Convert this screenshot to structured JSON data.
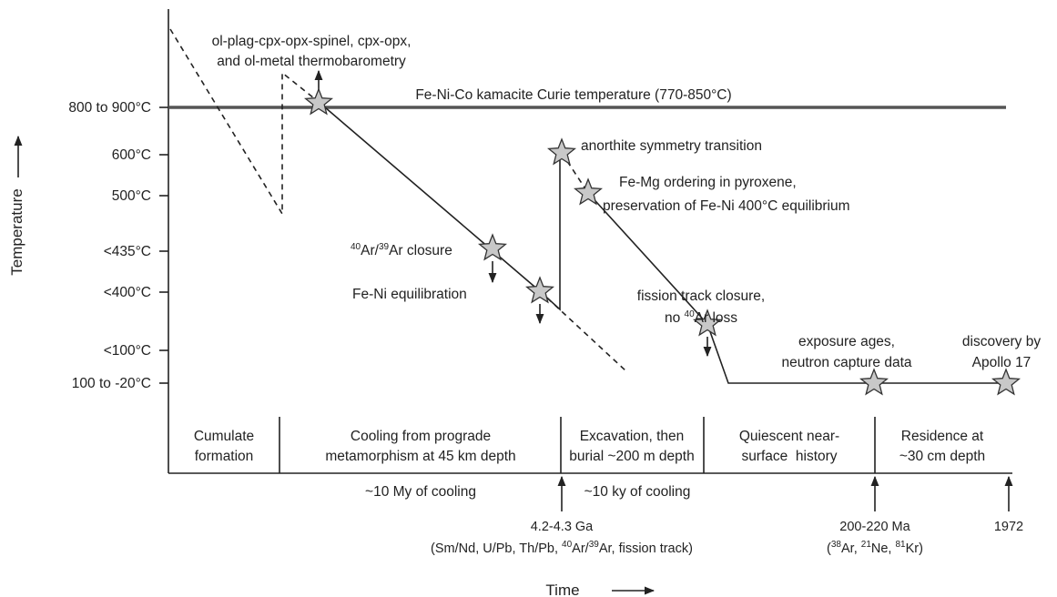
{
  "axes": {
    "y_label": "Temperature",
    "x_label": "Time",
    "y_ticks": [
      "800 to 900°C",
      "600°C",
      "500°C",
      "<435°C",
      "<400°C",
      "<100°C",
      "100 to -20°C"
    ]
  },
  "reference_line": "Fe-Ni-Co kamacite Curie temperature (770-850°C)",
  "annotations": {
    "thermobarometry": [
      "ol-plag-cpx-opx-spinel, cpx-opx,",
      "and ol-metal thermobarometry"
    ],
    "ar_closure": [
      {
        "sup": "40"
      },
      {
        "text": "Ar/"
      },
      {
        "sup": "39"
      },
      {
        "text": "Ar closure"
      }
    ],
    "fe_ni_equilibration": "Fe-Ni equilibration",
    "anorthite": "anorthite symmetry transition",
    "fe_mg": [
      "Fe-Mg ordering in pyroxene,",
      "preservation of Fe-Ni 400°C equilibrium"
    ],
    "fission_track": [
      "fission track closure,",
      [
        {
          "text": "no "
        },
        {
          "sup": "40"
        },
        {
          "text": "Ar loss"
        }
      ]
    ],
    "exposure": [
      "exposure ages,",
      "neutron capture data"
    ],
    "discovery": [
      "discovery by",
      "Apollo 17"
    ]
  },
  "periods": [
    [
      "Cumulate",
      "formation"
    ],
    [
      "Cooling from prograde",
      "metamorphism at 45 km depth"
    ],
    [
      "Excavation, then",
      "burial ~200 m depth"
    ],
    [
      "Quiescent near-",
      "surface  history"
    ],
    [
      "Residence at",
      "~30 cm depth"
    ]
  ],
  "durations": [
    "~10 My of cooling",
    "~10 ky of cooling"
  ],
  "dates": [
    {
      "label": "4.2-4.3 Ga",
      "methods": [
        {
          "text": "(Sm/Nd, U/Pb, Th/Pb, "
        },
        {
          "sup": "40"
        },
        {
          "text": "Ar/"
        },
        {
          "sup": "39"
        },
        {
          "text": "Ar, fission track)"
        }
      ]
    },
    {
      "label": "200-220 Ma",
      "methods": [
        {
          "text": "("
        },
        {
          "sup": "38"
        },
        {
          "text": "Ar, "
        },
        {
          "sup": "21"
        },
        {
          "text": "Ne, "
        },
        {
          "sup": "81"
        },
        {
          "text": "Kr)"
        }
      ]
    },
    {
      "label": "1972"
    }
  ]
}
